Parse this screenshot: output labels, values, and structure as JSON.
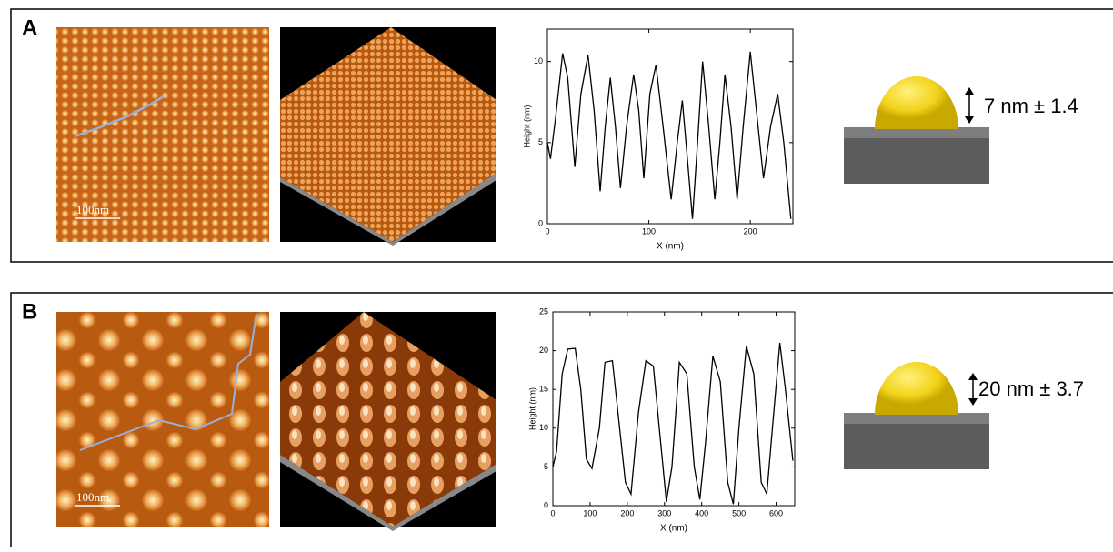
{
  "panels": [
    {
      "label": "A",
      "scale_bar": "100nm",
      "annotation": "7 nm ± 1.4"
    },
    {
      "label": "B",
      "scale_bar": "100nm",
      "annotation": "20 nm ± 3.7"
    }
  ],
  "chart_data": [
    {
      "type": "line",
      "x_label": "X (nm)",
      "y_label": "Height (nm)",
      "color": "#000000",
      "x": [
        0,
        3,
        8,
        15,
        20,
        27,
        33,
        40,
        46,
        52,
        57,
        62,
        67,
        72,
        78,
        85,
        90,
        95,
        101,
        107,
        114,
        122,
        128,
        133,
        138,
        143,
        148,
        153,
        159,
        165,
        170,
        175,
        181,
        187,
        193,
        200,
        206,
        213,
        220,
        227,
        233,
        240
      ],
      "values": [
        5,
        4,
        6.5,
        10.5,
        9,
        3.5,
        8,
        10.4,
        7,
        2,
        6,
        9,
        6,
        2.2,
        6,
        9.2,
        7,
        2.8,
        8,
        9.8,
        6,
        1.5,
        5,
        7.6,
        4,
        0.3,
        5,
        10,
        6,
        1.5,
        5,
        9.2,
        6,
        1.5,
        6,
        10.6,
        7,
        2.8,
        6,
        8,
        5,
        0.3
      ],
      "xlim": [
        0,
        242
      ],
      "ylim": [
        0,
        12
      ],
      "xticks": [
        0,
        100,
        200
      ],
      "yticks": [
        0,
        5,
        10
      ]
    },
    {
      "type": "line",
      "x_label": "X (nm)",
      "y_label": "Height (nm)",
      "color": "#000000",
      "x": [
        0,
        10,
        25,
        40,
        60,
        75,
        90,
        105,
        125,
        140,
        160,
        175,
        195,
        210,
        230,
        250,
        270,
        290,
        305,
        320,
        340,
        360,
        380,
        395,
        410,
        430,
        450,
        470,
        485,
        500,
        520,
        540,
        560,
        575,
        590,
        610,
        625,
        645
      ],
      "values": [
        5,
        7,
        17,
        20.2,
        20.3,
        15,
        6,
        4.8,
        10,
        18.5,
        18.7,
        12,
        3,
        1.5,
        12,
        18.7,
        18,
        8,
        0.5,
        5,
        18.5,
        17,
        5,
        0.8,
        8,
        19.3,
        16,
        3,
        0.2,
        10,
        20.6,
        17,
        3,
        1.5,
        10,
        21,
        15,
        5.8
      ],
      "xlim": [
        0,
        650
      ],
      "ylim": [
        0,
        25
      ],
      "xticks": [
        0,
        100,
        200,
        300,
        400,
        500,
        600
      ],
      "yticks": [
        0,
        5,
        10,
        15,
        20,
        25
      ]
    }
  ]
}
